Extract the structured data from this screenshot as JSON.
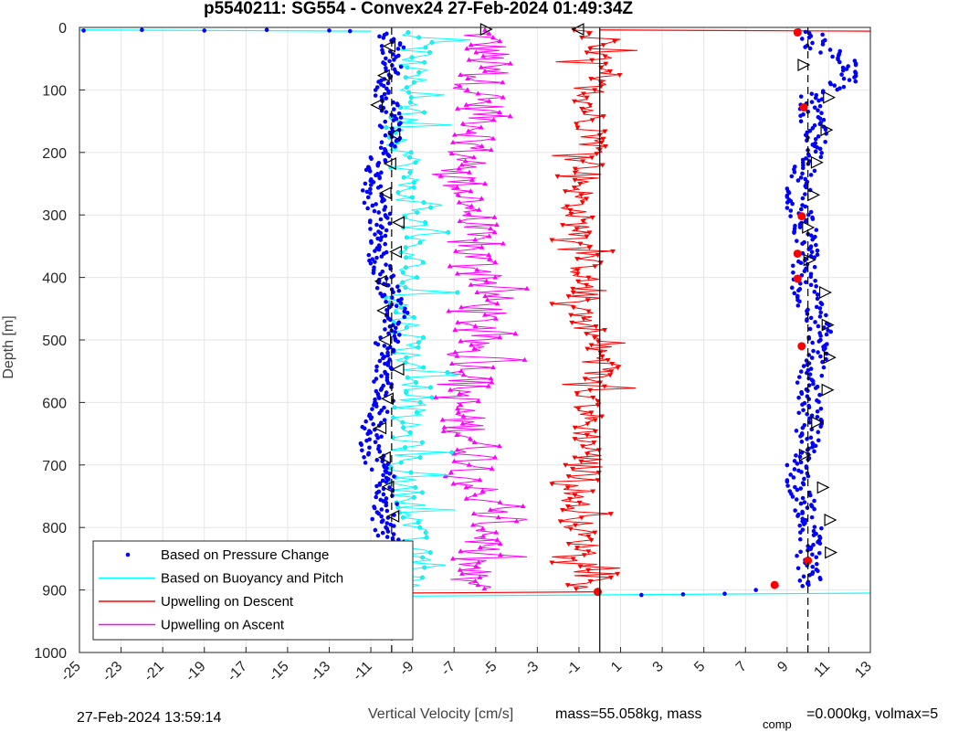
{
  "chart_data": {
    "type": "scatter",
    "title": "p5540211: SG554 - Convex24 27-Feb-2024 01:49:34Z",
    "xlabel": "Vertical Velocity [cm/s]",
    "ylabel": "Depth [m]",
    "xlim": [
      -25,
      13
    ],
    "ylim": [
      0,
      1000
    ],
    "y_reversed": true,
    "grid": true,
    "x_ticks": [
      -25,
      -23,
      -21,
      -19,
      -17,
      -15,
      -13,
      -11,
      -9,
      -7,
      -5,
      -3,
      -1,
      1,
      3,
      5,
      7,
      9,
      11,
      13
    ],
    "y_ticks": [
      0,
      100,
      200,
      300,
      400,
      500,
      600,
      700,
      800,
      900,
      1000
    ],
    "legend_position": "bottom-left",
    "series": [
      {
        "name": "Based on Pressure Change",
        "color": "#0000ff",
        "descent_mean_x": -10,
        "descent_range": [
          -11.5,
          -9.0
        ],
        "ascent_mean_x": 10,
        "ascent_range": [
          9,
          12.3
        ]
      },
      {
        "name": "Based on Buoyancy and Pitch",
        "color": "#00ffff",
        "descent_mean_x": -9.5,
        "descent_range": [
          -11.0,
          -7.0
        ],
        "ascent_mean_x": 10
      },
      {
        "name": "Upwelling on Descent",
        "color": "#ff0000",
        "mean_x": 0,
        "range": [
          -2.3,
          2.0
        ]
      },
      {
        "name": "Upwelling on Ascent",
        "color": "#ff00ff",
        "mean_x": -6,
        "range": [
          -9.0,
          -3.5
        ]
      }
    ],
    "reference_lines": {
      "dashed_x": [
        -10,
        10
      ],
      "solid_x": [
        0
      ]
    }
  },
  "footer": {
    "timestamp": "27-Feb-2024 13:59:14",
    "mass_text": "mass=55.058kg, mass",
    "comp_sub": "comp",
    "volmax_text": "=0.000kg, volmax=5"
  },
  "legend": {
    "items": [
      {
        "label": "Based on Pressure Change",
        "style": "dots",
        "color": "#0000ff"
      },
      {
        "label": "Based on Buoyancy and Pitch",
        "style": "line",
        "color": "#00ffff"
      },
      {
        "label": "Upwelling on Descent",
        "style": "line",
        "color": "#ff0000"
      },
      {
        "label": "Upwelling on Ascent",
        "style": "line",
        "color": "#ff00ff"
      }
    ]
  }
}
